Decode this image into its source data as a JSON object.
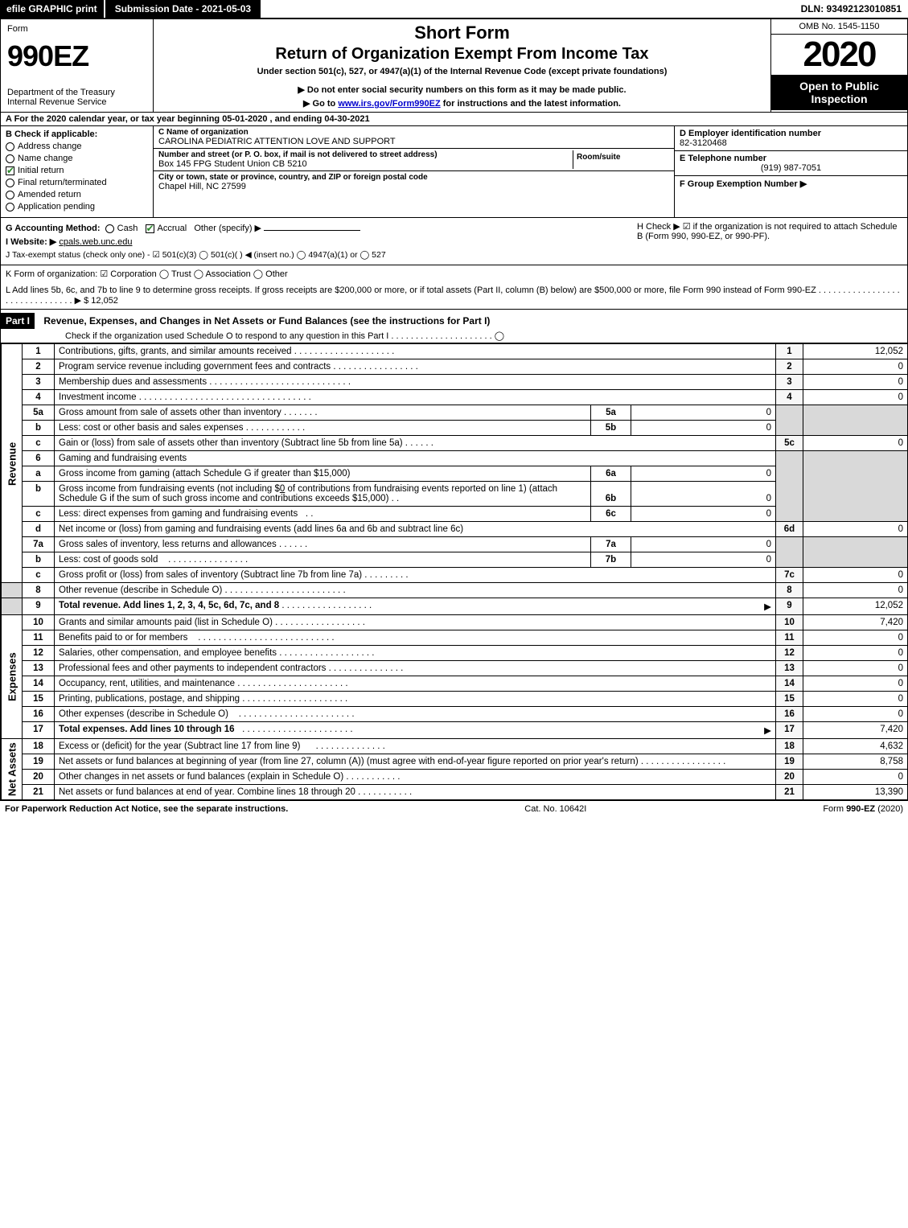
{
  "top": {
    "efile": "efile GRAPHIC print",
    "submission": "Submission Date - 2021-05-03",
    "dln": "DLN: 93492123010851"
  },
  "header": {
    "form_word": "Form",
    "form_no": "990EZ",
    "dept1": "Department of the Treasury",
    "dept2": "Internal Revenue Service",
    "title1": "Short Form",
    "title2": "Return of Organization Exempt From Income Tax",
    "subtitle": "Under section 501(c), 527, or 4947(a)(1) of the Internal Revenue Code (except private foundations)",
    "warn1": "▶ Do not enter social security numbers on this form as it may be made public.",
    "warn2_pre": "▶ Go to ",
    "warn2_link": "www.irs.gov/Form990EZ",
    "warn2_post": " for instructions and the latest information.",
    "omb": "OMB No. 1545-1150",
    "year": "2020",
    "inspect": "Open to Public Inspection"
  },
  "row_a": "A For the 2020 calendar year, or tax year beginning 05-01-2020 , and ending 04-30-2021",
  "col_b": {
    "label": "B Check if applicable:",
    "items": [
      {
        "t": "Address change",
        "c": false,
        "shape": "circle"
      },
      {
        "t": "Name change",
        "c": false,
        "shape": "circle"
      },
      {
        "t": "Initial return",
        "c": true,
        "shape": "box"
      },
      {
        "t": "Final return/terminated",
        "c": false,
        "shape": "circle"
      },
      {
        "t": "Amended return",
        "c": false,
        "shape": "circle"
      },
      {
        "t": "Application pending",
        "c": false,
        "shape": "circle"
      }
    ]
  },
  "col_c": {
    "name_label": "C Name of organization",
    "name": "CAROLINA PEDIATRIC ATTENTION LOVE AND SUPPORT",
    "addr_label": "Number and street (or P. O. box, if mail is not delivered to street address)",
    "room_label": "Room/suite",
    "addr": "Box 145 FPG Student Union CB 5210",
    "city_label": "City or town, state or province, country, and ZIP or foreign postal code",
    "city": "Chapel Hill, NC  27599"
  },
  "col_def": {
    "d_label": "D Employer identification number",
    "d": "82-3120468",
    "e_label": "E Telephone number",
    "e": "(919) 987-7051",
    "f_label": "F Group Exemption Number ▶"
  },
  "row_g": {
    "label": "G Accounting Method:",
    "cash": "Cash",
    "accrual": "Accrual",
    "other": "Other (specify) ▶"
  },
  "row_h": "H  Check ▶ ☑ if the organization is not required to attach Schedule B (Form 990, 990-EZ, or 990-PF).",
  "row_i": {
    "label": "I Website: ▶",
    "val": "cpals.web.unc.edu"
  },
  "row_j": "J Tax-exempt status (check only one) - ☑ 501(c)(3)  ◯ 501(c)(  ) ◀ (insert no.)  ◯ 4947(a)(1) or  ◯ 527",
  "row_k": "K Form of organization:  ☑ Corporation  ◯ Trust  ◯ Association  ◯ Other",
  "row_l": {
    "text": "L Add lines 5b, 6c, and 7b to line 9 to determine gross receipts. If gross receipts are $200,000 or more, or if total assets (Part II, column (B) below) are $500,000 or more, file Form 990 instead of Form 990-EZ  . . . . . . . . . . . . . . . . . . . . . . . . . . . . . . . ▶ $",
    "amt": "12,052"
  },
  "part1": {
    "part_label": "Part I",
    "title": "Revenue, Expenses, and Changes in Net Assets or Fund Balances (see the instructions for Part I)",
    "check_line": "Check if the organization used Schedule O to respond to any question in this Part I . . . . . . . . . . . . . . . . . . . . . ◯",
    "sections": {
      "revenue": "Revenue",
      "expenses": "Expenses",
      "netassets": "Net Assets"
    },
    "lines": {
      "1": {
        "n": "1",
        "t": "Contributions, gifts, grants, and similar amounts received",
        "a": "12,052"
      },
      "2": {
        "n": "2",
        "t": "Program service revenue including government fees and contracts",
        "a": "0"
      },
      "3": {
        "n": "3",
        "t": "Membership dues and assessments",
        "a": "0"
      },
      "4": {
        "n": "4",
        "t": "Investment income",
        "a": "0"
      },
      "5a": {
        "n": "5a",
        "t": "Gross amount from sale of assets other than inventory",
        "sub": "5a",
        "sa": "0"
      },
      "5b": {
        "n": "b",
        "t": "Less: cost or other basis and sales expenses",
        "sub": "5b",
        "sa": "0"
      },
      "5c": {
        "n": "c",
        "t": "Gain or (loss) from sale of assets other than inventory (Subtract line 5b from line 5a)",
        "ln": "5c",
        "a": "0"
      },
      "6": {
        "n": "6",
        "t": "Gaming and fundraising events"
      },
      "6a": {
        "n": "a",
        "t": "Gross income from gaming (attach Schedule G if greater than $15,000)",
        "sub": "6a",
        "sa": "0"
      },
      "6b": {
        "n": "b",
        "t_pre": "Gross income from fundraising events (not including $",
        "t_mid": "0",
        "t_post": " of contributions from fundraising events reported on line 1) (attach Schedule G if the sum of such gross income and contributions exceeds $15,000)",
        "sub": "6b",
        "sa": "0"
      },
      "6c": {
        "n": "c",
        "t": "Less: direct expenses from gaming and fundraising events",
        "sub": "6c",
        "sa": "0"
      },
      "6d": {
        "n": "d",
        "t": "Net income or (loss) from gaming and fundraising events (add lines 6a and 6b and subtract line 6c)",
        "ln": "6d",
        "a": "0"
      },
      "7a": {
        "n": "7a",
        "t": "Gross sales of inventory, less returns and allowances",
        "sub": "7a",
        "sa": "0"
      },
      "7b": {
        "n": "b",
        "t": "Less: cost of goods sold",
        "sub": "7b",
        "sa": "0"
      },
      "7c": {
        "n": "c",
        "t": "Gross profit or (loss) from sales of inventory (Subtract line 7b from line 7a)",
        "ln": "7c",
        "a": "0"
      },
      "8": {
        "n": "8",
        "t": "Other revenue (describe in Schedule O)",
        "a": "0"
      },
      "9": {
        "n": "9",
        "t": "Total revenue. Add lines 1, 2, 3, 4, 5c, 6d, 7c, and 8",
        "a": "12,052",
        "arrow": "▶",
        "bold": true
      },
      "10": {
        "n": "10",
        "t": "Grants and similar amounts paid (list in Schedule O)",
        "a": "7,420"
      },
      "11": {
        "n": "11",
        "t": "Benefits paid to or for members",
        "a": "0"
      },
      "12": {
        "n": "12",
        "t": "Salaries, other compensation, and employee benefits",
        "a": "0"
      },
      "13": {
        "n": "13",
        "t": "Professional fees and other payments to independent contractors",
        "a": "0"
      },
      "14": {
        "n": "14",
        "t": "Occupancy, rent, utilities, and maintenance",
        "a": "0"
      },
      "15": {
        "n": "15",
        "t": "Printing, publications, postage, and shipping",
        "a": "0"
      },
      "16": {
        "n": "16",
        "t": "Other expenses (describe in Schedule O)",
        "a": "0"
      },
      "17": {
        "n": "17",
        "t": "Total expenses. Add lines 10 through 16",
        "a": "7,420",
        "arrow": "▶",
        "bold": true
      },
      "18": {
        "n": "18",
        "t": "Excess or (deficit) for the year (Subtract line 17 from line 9)",
        "a": "4,632"
      },
      "19": {
        "n": "19",
        "t": "Net assets or fund balances at beginning of year (from line 27, column (A)) (must agree with end-of-year figure reported on prior year's return)",
        "a": "8,758"
      },
      "20": {
        "n": "20",
        "t": "Other changes in net assets or fund balances (explain in Schedule O)",
        "a": "0"
      },
      "21": {
        "n": "21",
        "t": "Net assets or fund balances at end of year. Combine lines 18 through 20",
        "a": "13,390"
      }
    }
  },
  "footer": {
    "left": "For Paperwork Reduction Act Notice, see the separate instructions.",
    "mid": "Cat. No. 10642I",
    "right": "Form 990-EZ (2020)"
  }
}
